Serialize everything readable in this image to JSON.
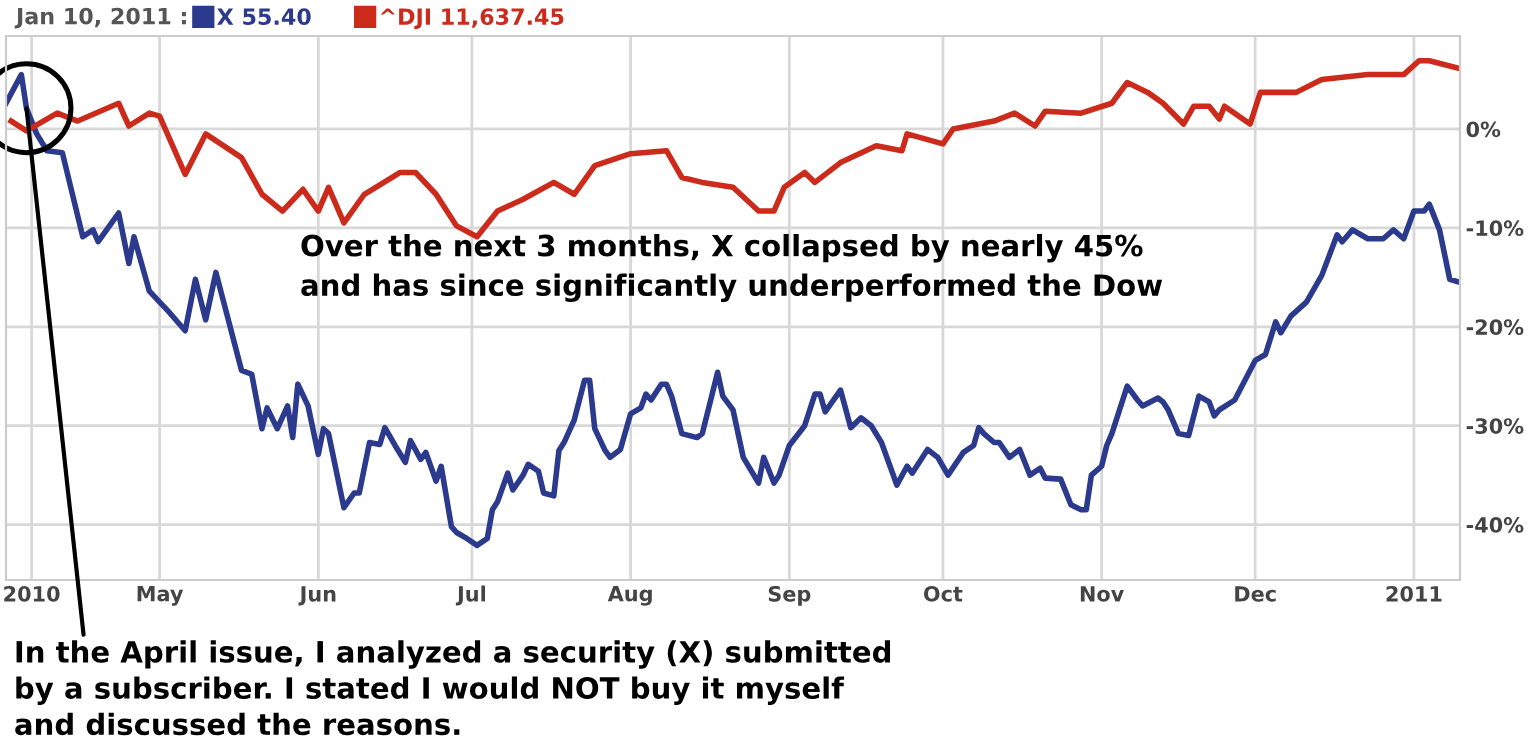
{
  "chart_data": {
    "type": "line",
    "legend_title": "Jan 10, 2011 :",
    "legend": "top left",
    "grid": true,
    "line_style": "solid",
    "xlim": [
      "2010-04-01",
      "2011-01-10"
    ],
    "xticks": [
      {
        "value": "2010-04-06",
        "label": "2010"
      },
      {
        "value": "2010-05-01",
        "label": "May"
      },
      {
        "value": "2010-06-01",
        "label": "Jun"
      },
      {
        "value": "2010-07-01",
        "label": "Jul"
      },
      {
        "value": "2010-08-01",
        "label": "Aug"
      },
      {
        "value": "2010-09-01",
        "label": "Sep"
      },
      {
        "value": "2010-10-01",
        "label": "Oct"
      },
      {
        "value": "2010-11-01",
        "label": "Nov"
      },
      {
        "value": "2010-12-01",
        "label": "Dec"
      },
      {
        "value": "2011-01-01",
        "label": "2011"
      }
    ],
    "ylim": [
      -45.6,
      9.4
    ],
    "yticks": [
      {
        "value": 0,
        "label": "0%"
      },
      {
        "value": -10,
        "label": "-10%"
      },
      {
        "value": -20,
        "label": "-20%"
      },
      {
        "value": -30,
        "label": "-30%"
      },
      {
        "value": -40,
        "label": "-40%"
      }
    ],
    "series": [
      {
        "name": "X 55.40",
        "color": "#2b3a8c",
        "x": [
          "2010-04-01",
          "2010-04-04",
          "2010-04-05",
          "2010-04-07",
          "2010-04-09",
          "2010-04-12",
          "2010-04-16",
          "2010-04-18",
          "2010-04-19",
          "2010-04-23",
          "2010-04-25",
          "2010-04-26",
          "2010-04-29",
          "2010-05-03",
          "2010-05-06",
          "2010-05-08",
          "2010-05-10",
          "2010-05-12",
          "2010-05-17",
          "2010-05-19",
          "2010-05-21",
          "2010-05-22",
          "2010-05-24",
          "2010-05-26",
          "2010-05-27",
          "2010-05-28",
          "2010-05-30",
          "2010-06-01",
          "2010-06-02",
          "2010-06-03",
          "2010-06-06",
          "2010-06-08",
          "2010-06-09",
          "2010-06-11",
          "2010-06-13",
          "2010-06-14",
          "2010-06-16",
          "2010-06-18",
          "2010-06-19",
          "2010-06-21",
          "2010-06-22",
          "2010-06-24",
          "2010-06-25",
          "2010-06-27",
          "2010-06-28",
          "2010-06-30",
          "2010-07-02",
          "2010-07-04",
          "2010-07-05",
          "2010-07-06",
          "2010-07-08",
          "2010-07-09",
          "2010-07-11",
          "2010-07-12",
          "2010-07-14",
          "2010-07-15",
          "2010-07-17",
          "2010-07-18",
          "2010-07-19",
          "2010-07-21",
          "2010-07-23",
          "2010-07-24",
          "2010-07-25",
          "2010-07-27",
          "2010-07-28",
          "2010-07-30",
          "2010-08-01",
          "2010-08-03",
          "2010-08-04",
          "2010-08-05",
          "2010-08-07",
          "2010-08-08",
          "2010-08-09",
          "2010-08-11",
          "2010-08-14",
          "2010-08-15",
          "2010-08-18",
          "2010-08-19",
          "2010-08-21",
          "2010-08-23",
          "2010-08-26",
          "2010-08-27",
          "2010-08-29",
          "2010-08-30",
          "2010-09-01",
          "2010-09-04",
          "2010-09-06",
          "2010-09-07",
          "2010-09-08",
          "2010-09-11",
          "2010-09-13",
          "2010-09-15",
          "2010-09-17",
          "2010-09-19",
          "2010-09-22",
          "2010-09-24",
          "2010-09-25",
          "2010-09-28",
          "2010-09-30",
          "2010-10-02",
          "2010-10-05",
          "2010-10-07",
          "2010-10-08",
          "2010-10-09",
          "2010-10-11",
          "2010-10-12",
          "2010-10-14",
          "2010-10-16",
          "2010-10-18",
          "2010-10-20",
          "2010-10-21",
          "2010-10-24",
          "2010-10-26",
          "2010-10-28",
          "2010-10-29",
          "2010-10-30",
          "2010-11-01",
          "2010-11-02",
          "2010-11-03",
          "2010-11-06",
          "2010-11-08",
          "2010-11-09",
          "2010-11-12",
          "2010-11-13",
          "2010-11-14",
          "2010-11-16",
          "2010-11-18",
          "2010-11-20",
          "2010-11-22",
          "2010-11-23",
          "2010-11-24",
          "2010-11-27",
          "2010-11-29",
          "2010-12-01",
          "2010-12-03",
          "2010-12-05",
          "2010-12-06",
          "2010-12-08",
          "2010-12-11",
          "2010-12-14",
          "2010-12-17",
          "2010-12-18",
          "2010-12-20",
          "2010-12-23",
          "2010-12-26",
          "2010-12-28",
          "2010-12-30",
          "2011-01-01",
          "2011-01-03",
          "2011-01-04",
          "2011-01-06",
          "2011-01-08",
          "2011-01-10"
        ],
        "values": [
          2.6,
          5.5,
          2.1,
          -0.5,
          -2.2,
          -2.4,
          -10.9,
          -10.2,
          -11.4,
          -8.5,
          -13.6,
          -10.9,
          -16.4,
          -18.6,
          -20.4,
          -15.2,
          -19.3,
          -14.5,
          -24.4,
          -24.8,
          -30.3,
          -28.2,
          -30.3,
          -28.0,
          -31.2,
          -25.8,
          -28.0,
          -32.9,
          -30.3,
          -30.8,
          -38.3,
          -36.8,
          -36.8,
          -31.7,
          -31.9,
          -30.2,
          -32.0,
          -33.7,
          -31.5,
          -33.4,
          -32.7,
          -35.6,
          -34.1,
          -40.2,
          -40.8,
          -41.4,
          -42.1,
          -41.4,
          -38.5,
          -37.7,
          -34.8,
          -36.5,
          -35.0,
          -33.9,
          -34.6,
          -36.8,
          -37.1,
          -32.5,
          -31.7,
          -29.4,
          -25.4,
          -25.4,
          -30.3,
          -32.5,
          -33.2,
          -32.4,
          -28.8,
          -28.2,
          -26.8,
          -27.4,
          -25.8,
          -25.8,
          -27.0,
          -30.8,
          -31.2,
          -30.8,
          -24.6,
          -27.0,
          -28.4,
          -33.2,
          -35.8,
          -33.2,
          -35.8,
          -35.0,
          -32.0,
          -30.0,
          -26.8,
          -26.8,
          -28.6,
          -26.4,
          -30.2,
          -29.2,
          -30.0,
          -31.7,
          -36.0,
          -34.1,
          -34.8,
          -32.4,
          -33.2,
          -35.0,
          -32.7,
          -32.0,
          -30.2,
          -30.8,
          -31.7,
          -31.7,
          -33.2,
          -32.4,
          -35.0,
          -34.3,
          -35.3,
          -35.4,
          -38.0,
          -38.5,
          -38.5,
          -35.0,
          -34.1,
          -32.0,
          -30.8,
          -26.0,
          -27.4,
          -28.0,
          -27.2,
          -27.6,
          -28.4,
          -30.8,
          -31.0,
          -27.0,
          -27.6,
          -29.0,
          -28.4,
          -27.4,
          -25.4,
          -23.4,
          -22.8,
          -19.5,
          -20.6,
          -18.9,
          -17.5,
          -14.8,
          -10.7,
          -11.4,
          -10.2,
          -11.1,
          -11.1,
          -10.2,
          -11.1,
          -8.3,
          -8.3,
          -7.6,
          -10.2,
          -15.2,
          -15.5
        ]
      },
      {
        "name": "^DJI 11,637.45",
        "color": "#cc2a1a",
        "x": [
          "2010-04-02",
          "2010-04-05",
          "2010-04-11",
          "2010-04-15",
          "2010-04-23",
          "2010-04-25",
          "2010-04-29",
          "2010-05-01",
          "2010-05-06",
          "2010-05-10",
          "2010-05-17",
          "2010-05-21",
          "2010-05-25",
          "2010-05-29",
          "2010-06-01",
          "2010-06-03",
          "2010-06-06",
          "2010-06-10",
          "2010-06-17",
          "2010-06-20",
          "2010-06-24",
          "2010-06-28",
          "2010-07-02",
          "2010-07-06",
          "2010-07-11",
          "2010-07-17",
          "2010-07-21",
          "2010-07-25",
          "2010-08-01",
          "2010-08-08",
          "2010-08-11",
          "2010-08-15",
          "2010-08-21",
          "2010-08-26",
          "2010-08-29",
          "2010-08-31",
          "2010-09-04",
          "2010-09-06",
          "2010-09-11",
          "2010-09-18",
          "2010-09-23",
          "2010-09-24",
          "2010-10-01",
          "2010-10-03",
          "2010-10-11",
          "2010-10-15",
          "2010-10-19",
          "2010-10-21",
          "2010-10-28",
          "2010-11-03",
          "2010-11-06",
          "2010-11-10",
          "2010-11-13",
          "2010-11-17",
          "2010-11-19",
          "2010-11-22",
          "2010-11-24",
          "2010-11-25",
          "2010-11-30",
          "2010-12-02",
          "2010-12-09",
          "2010-12-14",
          "2010-12-23",
          "2010-12-30",
          "2011-01-02",
          "2011-01-04",
          "2011-01-10"
        ],
        "values": [
          0.8,
          -0.2,
          1.6,
          0.8,
          2.6,
          0.3,
          1.6,
          1.3,
          -4.6,
          -0.5,
          -2.9,
          -6.6,
          -8.3,
          -6.1,
          -8.3,
          -5.9,
          -9.5,
          -6.6,
          -4.4,
          -4.4,
          -6.6,
          -9.8,
          -10.9,
          -8.3,
          -7.1,
          -5.4,
          -6.6,
          -3.7,
          -2.5,
          -2.2,
          -4.9,
          -5.4,
          -5.9,
          -8.3,
          -8.3,
          -5.9,
          -4.4,
          -5.4,
          -3.4,
          -1.7,
          -2.2,
          -0.5,
          -1.5,
          0.0,
          0.8,
          1.6,
          0.3,
          1.8,
          1.6,
          2.6,
          4.7,
          3.7,
          2.6,
          0.5,
          2.3,
          2.3,
          1.0,
          2.3,
          0.5,
          3.7,
          3.7,
          5.0,
          5.5,
          5.5,
          6.9,
          6.9,
          6.1
        ]
      }
    ],
    "annotations": [
      {
        "text": "In the April issue, I analyzed a security (X) submitted\nby a subscriber. I stated I would NOT buy it myself\nand discussed the reasons.",
        "x": "2010-04-05",
        "y": 2.1
      },
      "Over the next 3 months, X collapsed by nearly 45%\nand has since significantly underperformed the Dow"
    ]
  }
}
